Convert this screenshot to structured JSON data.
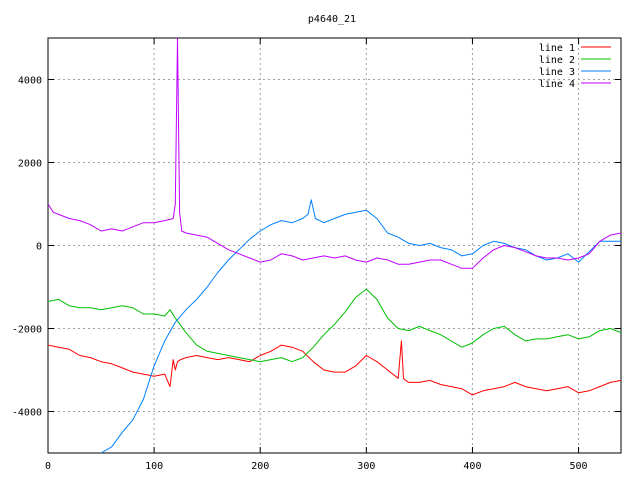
{
  "chart_data": {
    "type": "line",
    "title": "p4640_21",
    "xlabel": "",
    "ylabel": "",
    "xlim": [
      0,
      540
    ],
    "ylim": [
      -5000,
      5000
    ],
    "xticks": [
      0,
      100,
      200,
      300,
      400,
      500
    ],
    "yticks": [
      -4000,
      -2000,
      0,
      2000,
      4000
    ],
    "xtick_labels": [
      "0",
      "100",
      "200",
      "300",
      "400",
      "500"
    ],
    "ytick_labels": [
      "-4000",
      "-2000",
      "0",
      "2000",
      "4000"
    ],
    "grid": true,
    "legend_position": "top-right",
    "series": [
      {
        "name": "line 1",
        "color": "#ff0000",
        "x": [
          0,
          10,
          20,
          30,
          40,
          50,
          60,
          70,
          80,
          90,
          100,
          110,
          115,
          118,
          120,
          122,
          125,
          130,
          140,
          150,
          160,
          170,
          180,
          190,
          200,
          210,
          220,
          230,
          240,
          250,
          260,
          270,
          280,
          290,
          300,
          310,
          320,
          330,
          333,
          335,
          337,
          340,
          350,
          360,
          370,
          380,
          390,
          400,
          410,
          420,
          430,
          440,
          450,
          460,
          470,
          480,
          490,
          500,
          510,
          520,
          530,
          540
        ],
        "y": [
          -2400,
          -2450,
          -2500,
          -2650,
          -2700,
          -2800,
          -2850,
          -2950,
          -3050,
          -3100,
          -3150,
          -3100,
          -3400,
          -2750,
          -3000,
          -2800,
          -2750,
          -2700,
          -2650,
          -2700,
          -2750,
          -2700,
          -2750,
          -2800,
          -2650,
          -2550,
          -2400,
          -2450,
          -2550,
          -2800,
          -3000,
          -3050,
          -3050,
          -2900,
          -2650,
          -2800,
          -3000,
          -3200,
          -2300,
          -3200,
          -3250,
          -3300,
          -3300,
          -3250,
          -3350,
          -3400,
          -3450,
          -3600,
          -3500,
          -3450,
          -3400,
          -3300,
          -3400,
          -3450,
          -3500,
          -3450,
          -3400,
          -3550,
          -3500,
          -3400,
          -3300,
          -3250
        ]
      },
      {
        "name": "line 2",
        "color": "#00c000",
        "x": [
          0,
          10,
          20,
          30,
          40,
          50,
          60,
          70,
          80,
          90,
          100,
          110,
          115,
          120,
          130,
          140,
          150,
          160,
          170,
          180,
          190,
          200,
          210,
          220,
          230,
          240,
          250,
          260,
          270,
          280,
          290,
          300,
          310,
          320,
          330,
          340,
          350,
          360,
          370,
          380,
          390,
          400,
          410,
          420,
          430,
          440,
          450,
          460,
          470,
          480,
          490,
          500,
          510,
          520,
          530,
          540
        ],
        "y": [
          -1350,
          -1300,
          -1450,
          -1500,
          -1500,
          -1550,
          -1500,
          -1450,
          -1500,
          -1650,
          -1650,
          -1700,
          -1550,
          -1750,
          -2100,
          -2400,
          -2550,
          -2600,
          -2650,
          -2700,
          -2750,
          -2800,
          -2750,
          -2700,
          -2800,
          -2700,
          -2450,
          -2150,
          -1900,
          -1600,
          -1250,
          -1050,
          -1300,
          -1750,
          -2000,
          -2050,
          -1950,
          -2050,
          -2150,
          -2300,
          -2450,
          -2350,
          -2150,
          -2000,
          -1950,
          -2150,
          -2300,
          -2250,
          -2250,
          -2200,
          -2150,
          -2250,
          -2200,
          -2050,
          -2000,
          -2100
        ]
      },
      {
        "name": "line 3",
        "color": "#0080ff",
        "x": [
          50,
          60,
          70,
          80,
          90,
          100,
          110,
          120,
          130,
          140,
          150,
          160,
          170,
          180,
          190,
          200,
          210,
          220,
          230,
          240,
          245,
          248,
          252,
          260,
          270,
          280,
          290,
          300,
          310,
          320,
          330,
          340,
          350,
          360,
          370,
          380,
          390,
          400,
          410,
          420,
          430,
          440,
          450,
          460,
          470,
          480,
          490,
          500,
          510,
          520,
          530,
          540
        ],
        "y": [
          -5000,
          -4850,
          -4500,
          -4200,
          -3700,
          -2900,
          -2300,
          -1850,
          -1550,
          -1300,
          -1000,
          -650,
          -350,
          -100,
          150,
          350,
          500,
          600,
          550,
          650,
          750,
          1100,
          650,
          550,
          650,
          750,
          800,
          850,
          650,
          300,
          200,
          50,
          0,
          50,
          -50,
          -100,
          -250,
          -200,
          0,
          100,
          50,
          -50,
          -100,
          -250,
          -350,
          -300,
          -200,
          -400,
          -150,
          100,
          100,
          100
        ]
      },
      {
        "name": "line 4",
        "color": "#c000ff",
        "x": [
          0,
          5,
          10,
          20,
          30,
          40,
          50,
          60,
          70,
          80,
          90,
          100,
          110,
          118,
          120,
          121,
          122,
          123,
          124,
          126,
          130,
          140,
          150,
          160,
          170,
          180,
          190,
          200,
          210,
          220,
          230,
          240,
          250,
          260,
          270,
          280,
          290,
          300,
          310,
          320,
          330,
          340,
          350,
          360,
          370,
          380,
          390,
          400,
          410,
          420,
          430,
          440,
          450,
          460,
          470,
          480,
          490,
          500,
          510,
          520,
          530,
          540
        ],
        "y": [
          1000,
          800,
          750,
          650,
          600,
          500,
          350,
          400,
          350,
          450,
          550,
          550,
          600,
          650,
          1000,
          3000,
          5000,
          3000,
          800,
          350,
          300,
          250,
          200,
          50,
          -100,
          -200,
          -300,
          -400,
          -350,
          -200,
          -250,
          -350,
          -300,
          -250,
          -300,
          -250,
          -350,
          -400,
          -300,
          -350,
          -450,
          -450,
          -400,
          -350,
          -350,
          -450,
          -550,
          -550,
          -300,
          -100,
          0,
          -50,
          -150,
          -250,
          -300,
          -300,
          -350,
          -300,
          -200,
          100,
          250,
          300
        ]
      }
    ]
  }
}
